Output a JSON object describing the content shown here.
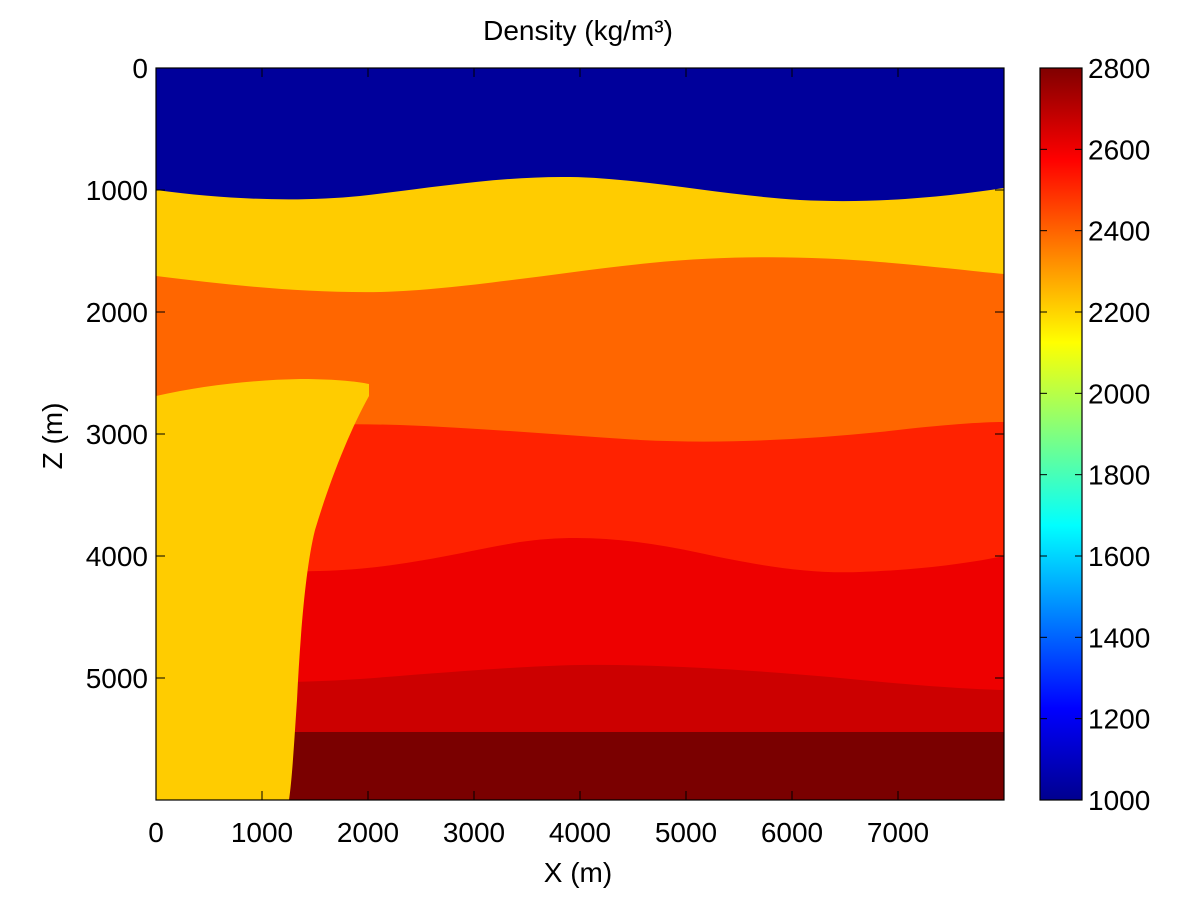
{
  "chart_data": {
    "type": "heatmap",
    "title": "Density (kg/m³)",
    "xlabel": "X (m)",
    "ylabel": "Z (m)",
    "xlim": [
      0,
      8000
    ],
    "ylim": [
      6000,
      0
    ],
    "x_ticks": [
      0,
      1000,
      2000,
      3000,
      4000,
      5000,
      6000,
      7000
    ],
    "y_ticks": [
      0,
      1000,
      2000,
      3000,
      4000,
      5000
    ],
    "colorbar": {
      "colormap": "jet",
      "range": [
        1000,
        2800
      ],
      "ticks": [
        1000,
        1200,
        1400,
        1600,
        1800,
        2000,
        2200,
        2400,
        2600,
        2800
      ]
    },
    "layers": [
      {
        "density": 1000,
        "color": "#00009b",
        "top_depth": [
          0,
          0,
          0
        ],
        "x_at": [
          0,
          4000,
          8000
        ]
      },
      {
        "density": 2200,
        "color": "#ffcc00",
        "top_depth": [
          1000,
          900,
          1000
        ],
        "x_at": [
          0,
          4000,
          8000
        ]
      },
      {
        "density": 2350,
        "color": "#ff6600",
        "top_depth": [
          1700,
          1550,
          1700
        ],
        "x_at": [
          0,
          6000,
          8000
        ]
      },
      {
        "density": 2500,
        "color": "#ff2200",
        "top_depth": [
          2900,
          3050,
          2900
        ],
        "x_at": [
          1900,
          5000,
          8000
        ]
      },
      {
        "density": 2600,
        "color": "#ee0000",
        "top_depth": [
          4100,
          3800,
          4100
        ],
        "x_at": [
          1400,
          4000,
          6600
        ]
      },
      {
        "density": 2700,
        "color": "#cc0000",
        "top_depth": [
          5000,
          4900,
          5100
        ],
        "x_at": [
          1350,
          4000,
          8000
        ]
      },
      {
        "density": 2800,
        "color": "#7a0000",
        "top_depth": [
          5450,
          5450,
          5450
        ],
        "x_at": [
          1300,
          4000,
          8000
        ]
      }
    ],
    "salt_body": {
      "density": 2200,
      "color": "#ffcc00",
      "x_range_top": [
        0,
        2000
      ],
      "top_depth": [
        2650,
        2550
      ],
      "x_at_bottom": 1250
    },
    "grid": false
  }
}
